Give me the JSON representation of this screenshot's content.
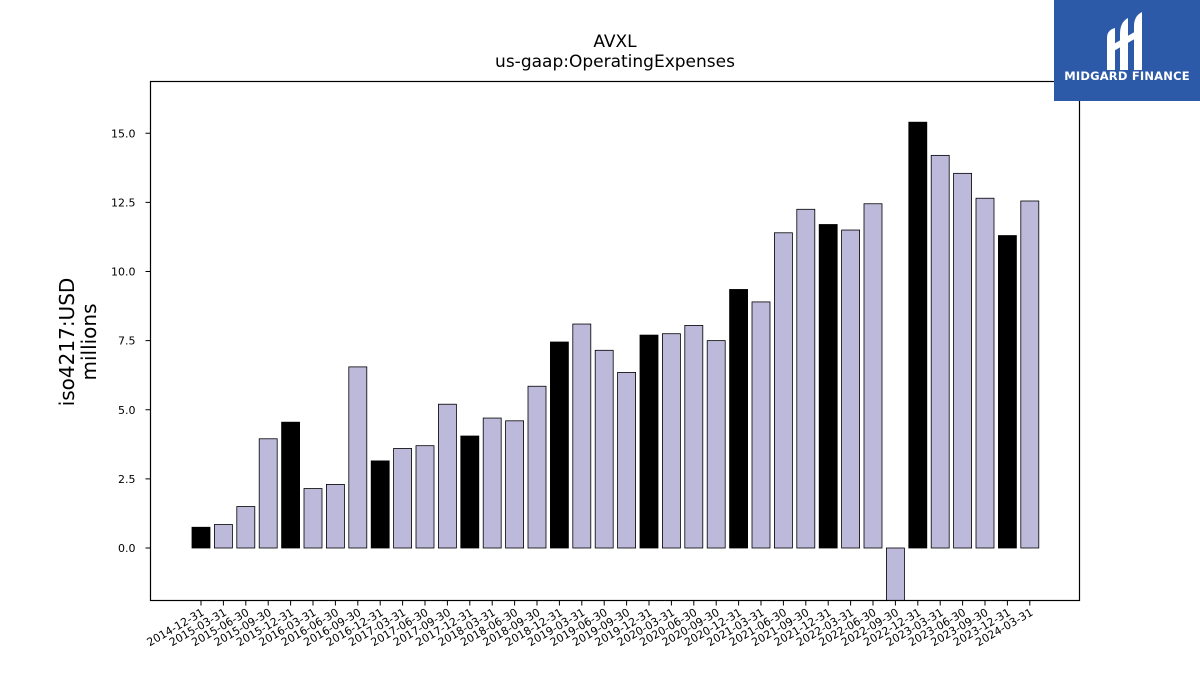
{
  "chart_data": {
    "type": "bar",
    "title": "AVXL",
    "subtitle": "us-gaap:OperatingExpenses",
    "ylabel_line1": "iso4217:USD",
    "ylabel_line2": "millions",
    "xlabel": "",
    "ylim": [
      -1.9,
      16.9
    ],
    "yticks": [
      "0.0",
      "2.5",
      "5.0",
      "7.5",
      "10.0",
      "12.5",
      "15.0"
    ],
    "ytick_values": [
      0,
      2.5,
      5.0,
      7.5,
      10.0,
      12.5,
      15.0
    ],
    "categories": [
      "2014-12-31",
      "2015-03-31",
      "2015-06-30",
      "2015-09-30",
      "2015-12-31",
      "2016-03-31",
      "2016-06-30",
      "2016-09-30",
      "2016-12-31",
      "2017-03-31",
      "2017-06-30",
      "2017-09-30",
      "2017-12-31",
      "2018-03-31",
      "2018-06-30",
      "2018-09-30",
      "2018-12-31",
      "2019-03-31",
      "2019-06-30",
      "2019-09-30",
      "2019-12-31",
      "2020-03-31",
      "2020-06-30",
      "2020-09-30",
      "2020-12-31",
      "2021-03-31",
      "2021-06-30",
      "2021-09-30",
      "2021-12-31",
      "2022-03-31",
      "2022-06-30",
      "2022-09-30",
      "2022-12-31",
      "2023-03-31",
      "2023-06-30",
      "2023-09-30",
      "2023-12-31",
      "2024-03-31"
    ],
    "values": [
      0.75,
      0.85,
      1.5,
      3.95,
      4.55,
      2.15,
      2.3,
      6.55,
      3.15,
      3.6,
      3.7,
      5.2,
      4.05,
      4.7,
      4.6,
      5.85,
      7.45,
      8.1,
      7.15,
      6.35,
      7.7,
      7.75,
      8.05,
      7.5,
      9.35,
      8.9,
      11.4,
      12.25,
      11.7,
      11.5,
      12.45,
      -2.15,
      15.4,
      14.2,
      13.55,
      12.65,
      11.3,
      12.55
    ],
    "annual": [
      true,
      false,
      false,
      false,
      true,
      false,
      false,
      false,
      true,
      false,
      false,
      false,
      true,
      false,
      false,
      false,
      true,
      false,
      false,
      false,
      true,
      false,
      false,
      false,
      true,
      false,
      false,
      false,
      true,
      false,
      false,
      false,
      true,
      false,
      false,
      false,
      true,
      false
    ],
    "colors": {
      "annual": "#000000",
      "quarterly": "#bcb9da",
      "edge": "#000000"
    },
    "grid": false,
    "legend": "none"
  },
  "logo": {
    "text": "MIDGARD FINANCE",
    "background": "#2d5aa8"
  }
}
